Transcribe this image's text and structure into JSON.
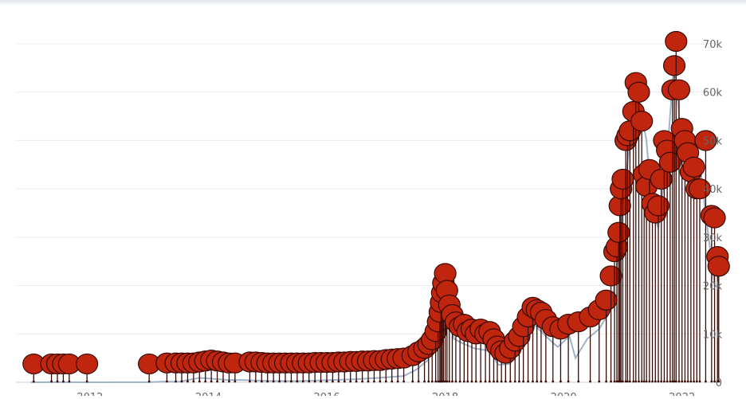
{
  "chart_data": {
    "type": "line",
    "title": "",
    "xlabel": "",
    "ylabel": "",
    "x_ticks": [
      "2012",
      "2014",
      "2016",
      "2018",
      "2020",
      "2022"
    ],
    "y_ticks": [
      "0",
      "10k",
      "20k",
      "30k",
      "40k",
      "50k",
      "60k",
      "70k"
    ],
    "y_tick_values": [
      0,
      10000,
      20000,
      30000,
      40000,
      50000,
      60000,
      70000
    ],
    "xlim": [
      2010.75,
      2022.65
    ],
    "ylim": [
      0,
      72000
    ],
    "grid": true,
    "colors": {
      "line": "#9fb3c8",
      "flag": "#c0250e",
      "flag_stroke": "#3a0a05",
      "grid": "#d6d9dc",
      "tick_text": "#666666"
    },
    "series": [
      {
        "values": [
          [
            2011.0,
            5
          ],
          [
            2011.5,
            15
          ],
          [
            2012.0,
            6
          ],
          [
            2012.5,
            9
          ],
          [
            2013.0,
            14
          ],
          [
            2013.25,
            150
          ],
          [
            2013.5,
            100
          ],
          [
            2013.85,
            900
          ],
          [
            2014.0,
            800
          ],
          [
            2014.3,
            500
          ],
          [
            2014.6,
            450
          ],
          [
            2015.0,
            300
          ],
          [
            2015.5,
            250
          ],
          [
            2016.0,
            420
          ],
          [
            2016.5,
            650
          ],
          [
            2017.0,
            1000
          ],
          [
            2017.3,
            1300
          ],
          [
            2017.5,
            2500
          ],
          [
            2017.7,
            4500
          ],
          [
            2017.85,
            9000
          ],
          [
            2017.96,
            19000
          ],
          [
            2018.05,
            13000
          ],
          [
            2018.15,
            9000
          ],
          [
            2018.3,
            8000
          ],
          [
            2018.5,
            7000
          ],
          [
            2018.75,
            6500
          ],
          [
            2018.9,
            3600
          ],
          [
            2019.1,
            3800
          ],
          [
            2019.3,
            8000
          ],
          [
            2019.5,
            12000
          ],
          [
            2019.7,
            9500
          ],
          [
            2019.9,
            7300
          ],
          [
            2020.1,
            9500
          ],
          [
            2020.2,
            5000
          ],
          [
            2020.4,
            9000
          ],
          [
            2020.6,
            11000
          ],
          [
            2020.8,
            15000
          ],
          [
            2020.95,
            29000
          ],
          [
            2021.1,
            48000
          ],
          [
            2021.25,
            60000
          ],
          [
            2021.4,
            50000
          ],
          [
            2021.5,
            35000
          ],
          [
            2021.6,
            32000
          ],
          [
            2021.75,
            47000
          ],
          [
            2021.87,
            67000
          ],
          [
            2022.0,
            47000
          ],
          [
            2022.15,
            40000
          ],
          [
            2022.3,
            45000
          ],
          [
            2022.45,
            30000
          ],
          [
            2022.55,
            20000
          ],
          [
            2022.65,
            19500
          ]
        ]
      }
    ],
    "flags": [
      [
        2011.05,
        3800
      ],
      [
        2011.35,
        3800
      ],
      [
        2011.45,
        3800
      ],
      [
        2011.55,
        3800
      ],
      [
        2011.65,
        3800
      ],
      [
        2011.95,
        3800
      ],
      [
        2013.0,
        3800
      ],
      [
        2013.3,
        4000
      ],
      [
        2013.45,
        4000
      ],
      [
        2013.55,
        4000
      ],
      [
        2013.65,
        4000
      ],
      [
        2013.75,
        4000
      ],
      [
        2013.85,
        4200
      ],
      [
        2013.95,
        4400
      ],
      [
        2014.05,
        4600
      ],
      [
        2014.15,
        4400
      ],
      [
        2014.25,
        4200
      ],
      [
        2014.35,
        4000
      ],
      [
        2014.45,
        4000
      ],
      [
        2014.7,
        4200
      ],
      [
        2014.8,
        4200
      ],
      [
        2014.9,
        4100
      ],
      [
        2015.0,
        4000
      ],
      [
        2015.1,
        4000
      ],
      [
        2015.2,
        4000
      ],
      [
        2015.3,
        4000
      ],
      [
        2015.4,
        4000
      ],
      [
        2015.5,
        4000
      ],
      [
        2015.6,
        4000
      ],
      [
        2015.7,
        4000
      ],
      [
        2015.8,
        4100
      ],
      [
        2015.9,
        4100
      ],
      [
        2016.0,
        4100
      ],
      [
        2016.1,
        4100
      ],
      [
        2016.2,
        4200
      ],
      [
        2016.3,
        4200
      ],
      [
        2016.4,
        4300
      ],
      [
        2016.5,
        4300
      ],
      [
        2016.6,
        4400
      ],
      [
        2016.7,
        4400
      ],
      [
        2016.8,
        4500
      ],
      [
        2016.9,
        4500
      ],
      [
        2017.0,
        4700
      ],
      [
        2017.1,
        4800
      ],
      [
        2017.2,
        4900
      ],
      [
        2017.3,
        5000
      ],
      [
        2017.45,
        5500
      ],
      [
        2017.55,
        6300
      ],
      [
        2017.65,
        7000
      ],
      [
        2017.72,
        7800
      ],
      [
        2017.78,
        8800
      ],
      [
        2017.84,
        10500
      ],
      [
        2017.88,
        12500
      ],
      [
        2017.91,
        14500
      ],
      [
        2017.93,
        16500
      ],
      [
        2017.95,
        18500
      ],
      [
        2017.97,
        20500
      ],
      [
        2018.0,
        22500
      ],
      [
        2018.03,
        19000
      ],
      [
        2018.07,
        16000
      ],
      [
        2018.12,
        14000
      ],
      [
        2018.18,
        12500
      ],
      [
        2018.25,
        11500
      ],
      [
        2018.32,
        12000
      ],
      [
        2018.38,
        10500
      ],
      [
        2018.45,
        11000
      ],
      [
        2018.52,
        10000
      ],
      [
        2018.6,
        11000
      ],
      [
        2018.68,
        10000
      ],
      [
        2018.75,
        10500
      ],
      [
        2018.82,
        9000
      ],
      [
        2018.88,
        7500
      ],
      [
        2018.95,
        6500
      ],
      [
        2019.02,
        6000
      ],
      [
        2019.1,
        7000
      ],
      [
        2019.18,
        8500
      ],
      [
        2019.25,
        9500
      ],
      [
        2019.32,
        11500
      ],
      [
        2019.4,
        13500
      ],
      [
        2019.48,
        15500
      ],
      [
        2019.55,
        15000
      ],
      [
        2019.62,
        14500
      ],
      [
        2019.7,
        13000
      ],
      [
        2019.82,
        11500
      ],
      [
        2019.95,
        11000
      ],
      [
        2020.08,
        12000
      ],
      [
        2020.25,
        12500
      ],
      [
        2020.45,
        13500
      ],
      [
        2020.6,
        15000
      ],
      [
        2020.72,
        17000
      ],
      [
        2020.8,
        22000
      ],
      [
        2020.86,
        27000
      ],
      [
        2020.9,
        28000
      ],
      [
        2020.93,
        31000
      ],
      [
        2020.95,
        36500
      ],
      [
        2020.97,
        40000
      ],
      [
        2021.0,
        42000
      ],
      [
        2021.05,
        50000
      ],
      [
        2021.08,
        51000
      ],
      [
        2021.12,
        52000
      ],
      [
        2021.18,
        56000
      ],
      [
        2021.22,
        62000
      ],
      [
        2021.27,
        60000
      ],
      [
        2021.32,
        54000
      ],
      [
        2021.36,
        43000
      ],
      [
        2021.4,
        40500
      ],
      [
        2021.45,
        44000
      ],
      [
        2021.5,
        37000
      ],
      [
        2021.55,
        35000
      ],
      [
        2021.6,
        36500
      ],
      [
        2021.65,
        42000
      ],
      [
        2021.7,
        50000
      ],
      [
        2021.75,
        48000
      ],
      [
        2021.8,
        45500
      ],
      [
        2021.84,
        60500
      ],
      [
        2021.87,
        65500
      ],
      [
        2021.9,
        70500
      ],
      [
        2021.95,
        60500
      ],
      [
        2022.0,
        52500
      ],
      [
        2022.05,
        50000
      ],
      [
        2022.1,
        47500
      ],
      [
        2022.15,
        43500
      ],
      [
        2022.2,
        44500
      ],
      [
        2022.25,
        40000
      ],
      [
        2022.3,
        40000
      ],
      [
        2022.4,
        50000
      ],
      [
        2022.5,
        34500
      ],
      [
        2022.55,
        34000
      ],
      [
        2022.6,
        26000
      ],
      [
        2022.62,
        24000
      ]
    ]
  }
}
